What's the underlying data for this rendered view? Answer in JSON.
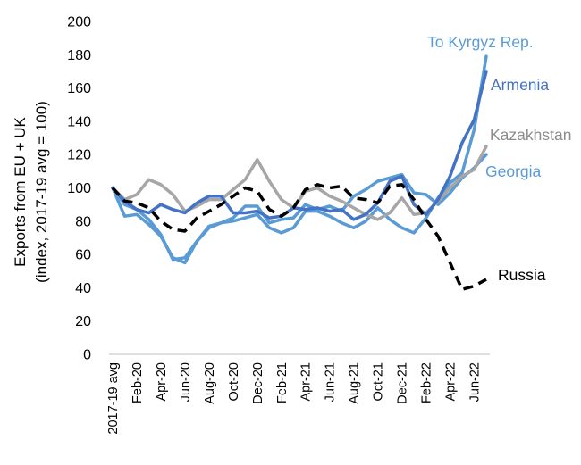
{
  "chart_data": {
    "type": "line",
    "title": "",
    "ylabel": "Exports from EU + UK",
    "ylabel_sub": "(index, 2017-19 avg = 100)",
    "xlabel": "",
    "ylim": [
      0,
      200
    ],
    "yticks": [
      "0",
      "20",
      "40",
      "60",
      "80",
      "100",
      "120",
      "140",
      "160",
      "180",
      "200"
    ],
    "x": [
      "2017-19 avg",
      "Jan-20",
      "Feb-20",
      "Mar-20",
      "Apr-20",
      "May-20",
      "Jun-20",
      "Jul-20",
      "Aug-20",
      "Sep-20",
      "Oct-20",
      "Nov-20",
      "Dec-20",
      "Jan-21",
      "Feb-21",
      "Mar-21",
      "Apr-21",
      "May-21",
      "Jun-21",
      "Jul-21",
      "Aug-21",
      "Sep-21",
      "Oct-21",
      "Nov-21",
      "Dec-21",
      "Jan-22",
      "Feb-22",
      "Mar-22",
      "Apr-22",
      "May-22",
      "Jun-22",
      "Jul-22"
    ],
    "x_tick_labels": [
      "2017-19 avg",
      "Feb-20",
      "Apr-20",
      "Jun-20",
      "Aug-20",
      "Oct-20",
      "Dec-20",
      "Feb-21",
      "Apr-21",
      "Jun-21",
      "Aug-21",
      "Oct-21",
      "Dec-21",
      "Feb-22",
      "Apr-22",
      "Jun-22"
    ],
    "grid": false,
    "legend": "direct labels",
    "series": [
      {
        "name": "Kazakhstan",
        "color": "#a6a6a6",
        "dash": "solid",
        "values": [
          100,
          93,
          96,
          105,
          102,
          96,
          86,
          89,
          93,
          93,
          99,
          105,
          117,
          104,
          93,
          88,
          98,
          100,
          95,
          92,
          88,
          84,
          81,
          85,
          94,
          84,
          85,
          92,
          100,
          107,
          111,
          125
        ]
      },
      {
        "name": "Armenia",
        "color": "#4472c4",
        "dash": "solid",
        "values": [
          100,
          92,
          87,
          85,
          90,
          87,
          85,
          91,
          95,
          95,
          85,
          85,
          86,
          82,
          83,
          88,
          87,
          88,
          86,
          87,
          81,
          84,
          91,
          104,
          107,
          90,
          84,
          93,
          107,
          127,
          141,
          170
        ]
      },
      {
        "name": "To Kyrgyz Rep.",
        "color": "#5b9bd5",
        "dash": "solid",
        "values": [
          100,
          83,
          84,
          78,
          71,
          58,
          55,
          68,
          76,
          79,
          80,
          82,
          84,
          76,
          73,
          76,
          86,
          86,
          83,
          79,
          76,
          80,
          88,
          81,
          76,
          73,
          82,
          94,
          103,
          109,
          135,
          179
        ]
      },
      {
        "name": "Georgia",
        "color": "#5b9bd5",
        "dash": "solid",
        "values": [
          100,
          90,
          87,
          81,
          72,
          57,
          58,
          68,
          77,
          79,
          82,
          89,
          89,
          79,
          81,
          82,
          90,
          87,
          89,
          86,
          95,
          99,
          104,
          106,
          108,
          97,
          96,
          90,
          97,
          106,
          112,
          120
        ]
      },
      {
        "name": "Russia",
        "color": "#000000",
        "dash": "dashed",
        "values": [
          100,
          92,
          91,
          88,
          80,
          75,
          74,
          82,
          86,
          90,
          95,
          100,
          98,
          87,
          83,
          88,
          99,
          102,
          100,
          101,
          94,
          93,
          91,
          101,
          102,
          93,
          81,
          71,
          55,
          39,
          41,
          45
        ]
      }
    ]
  }
}
